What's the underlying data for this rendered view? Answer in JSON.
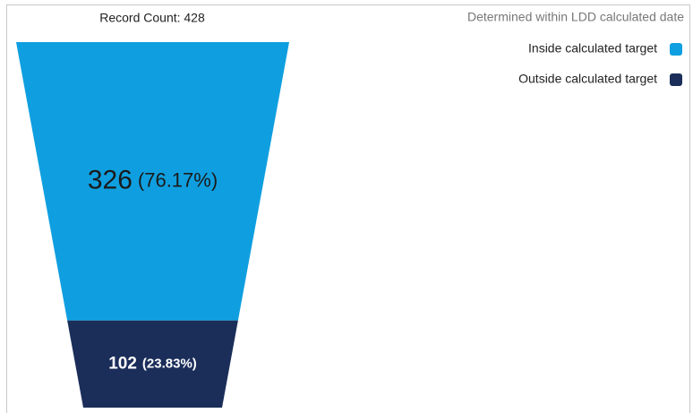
{
  "chart_data": {
    "type": "funnel",
    "title": "Record Count: 428",
    "legend_title": "Determined within LDD calculated date",
    "legend_position": "top-right",
    "categories": [
      "Inside calculated target",
      "Outside calculated target"
    ],
    "values": [
      326,
      102
    ],
    "percents": [
      76.17,
      23.83
    ],
    "percent_labels": [
      "(76.17%)",
      "(23.83%)"
    ],
    "colors": [
      "#0f9fe0",
      "#1b2e5a"
    ],
    "label_colors": [
      "#1a1a1a",
      "#ffffff"
    ]
  }
}
